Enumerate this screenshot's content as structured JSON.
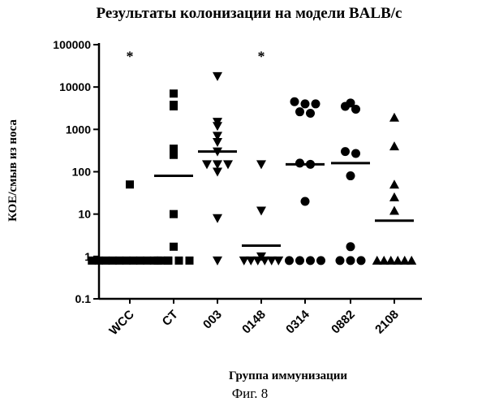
{
  "chart_data": {
    "type": "scatter",
    "title": "Результаты колонизации на модели BALB/c",
    "xlabel": "Группа иммунизации",
    "ylabel": "КОЕ/смыв из носа",
    "yscale": "log",
    "ylim": [
      0.1,
      100000
    ],
    "yticks": [
      0.1,
      1,
      10,
      100,
      1000,
      10000,
      100000
    ],
    "ytick_labels": [
      "0.1",
      "1",
      "10",
      "100",
      "1000",
      "10000",
      "100000"
    ],
    "categories": [
      "WCC",
      "CT",
      "003",
      "0148",
      "0314",
      "0882",
      "2108"
    ],
    "grid": false,
    "legend": "none",
    "series": [
      {
        "category": "WCC",
        "marker": "square",
        "points": [
          60000,
          50,
          0.8,
          0.8,
          0.8,
          0.8,
          0.8,
          0.8,
          0.8,
          0.8,
          0.8,
          0.8,
          0.8,
          0.8
        ],
        "median": 0.8
      },
      {
        "category": "CT",
        "marker": "square",
        "points": [
          7000,
          3800,
          3500,
          350,
          250,
          10,
          1.7,
          0.8,
          0.8,
          0.8,
          0.8
        ],
        "median": 80
      },
      {
        "category": "003",
        "marker": "triangle-down",
        "points": [
          18000,
          1500,
          1200,
          700,
          500,
          300,
          150,
          150,
          150,
          100,
          8,
          0.8
        ],
        "median": 300
      },
      {
        "category": "0148",
        "marker": "triangle-down",
        "points": [
          60000,
          150,
          12,
          1,
          0.8,
          0.8,
          0.8,
          0.8,
          0.8,
          0.8
        ],
        "median": 1.8
      },
      {
        "category": "0314",
        "marker": "circle",
        "points": [
          4500,
          4000,
          4000,
          2600,
          2400,
          160,
          150,
          20,
          0.8,
          0.8,
          0.8,
          0.8
        ],
        "median": 150
      },
      {
        "category": "0882",
        "marker": "circle",
        "points": [
          4200,
          3500,
          3000,
          300,
          270,
          80,
          1.7,
          0.8,
          0.8,
          0.8
        ],
        "median": 160
      },
      {
        "category": "2108",
        "marker": "triangle-up",
        "points": [
          1900,
          400,
          50,
          25,
          12,
          0.8,
          0.8,
          0.8,
          0.8,
          0.8,
          0.8
        ],
        "median": 7
      }
    ]
  },
  "caption": "Фиг. 8"
}
